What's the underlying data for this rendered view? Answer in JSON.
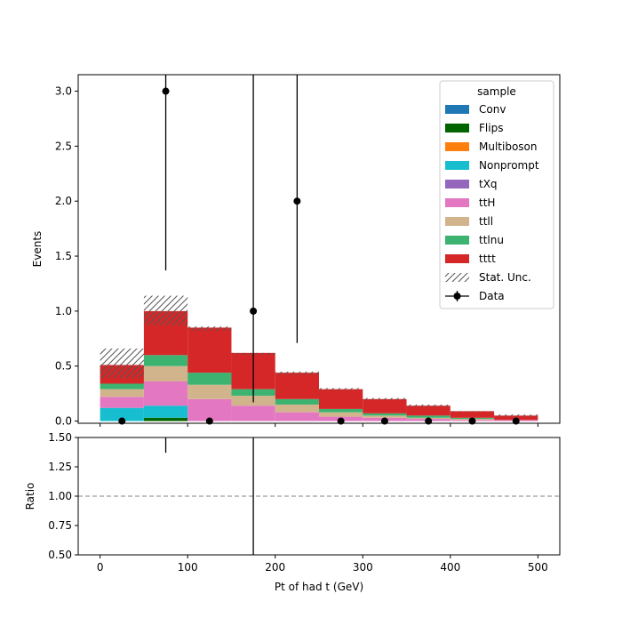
{
  "chart_data": [
    {
      "type": "bar",
      "stacked": true,
      "bin_edges": [
        0,
        50,
        100,
        150,
        200,
        250,
        300,
        350,
        400,
        450,
        500
      ],
      "ylabel": "Events",
      "ylim": [
        -0.02,
        3.15
      ],
      "xlim": [
        -25,
        525
      ],
      "yticks": [
        "0.0",
        "0.5",
        "1.0",
        "1.5",
        "2.0",
        "2.5",
        "3.0"
      ],
      "ytick_values": [
        0,
        0.5,
        1.0,
        1.5,
        2.0,
        2.5,
        3.0
      ],
      "legend_title": "sample",
      "legend_position": "top-right",
      "series": [
        {
          "name": "Conv",
          "color": "#1f77b4",
          "values": [
            0.0,
            0.0,
            0.0,
            0.0,
            0.0,
            0.0,
            0.0,
            0.0,
            0.0,
            0.0
          ]
        },
        {
          "name": "Flips",
          "color": "#006400",
          "values": [
            0.0,
            0.03,
            0.0,
            0.0,
            0.0,
            0.0,
            0.0,
            0.0,
            0.0,
            0.0
          ]
        },
        {
          "name": "Multiboson",
          "color": "#ff7f0e",
          "values": [
            0.0,
            0.0,
            0.0,
            0.0,
            0.0,
            0.0,
            0.0,
            0.0,
            0.0,
            0.0
          ]
        },
        {
          "name": "Nonprompt",
          "color": "#17becf",
          "values": [
            0.12,
            0.11,
            0.0,
            0.0,
            0.0,
            0.0,
            0.0,
            0.0,
            0.0,
            0.0
          ]
        },
        {
          "name": "tXq",
          "color": "#9467bd",
          "values": [
            0.0,
            0.0,
            0.0,
            0.0,
            0.0,
            0.0,
            0.0,
            0.0,
            0.0,
            0.0
          ]
        },
        {
          "name": "ttH",
          "color": "#e377c2",
          "values": [
            0.1,
            0.22,
            0.2,
            0.14,
            0.08,
            0.04,
            0.03,
            0.02,
            0.01,
            0.01
          ]
        },
        {
          "name": "ttll",
          "color": "#d2b48c",
          "values": [
            0.07,
            0.14,
            0.13,
            0.09,
            0.07,
            0.04,
            0.02,
            0.01,
            0.01,
            0.0
          ]
        },
        {
          "name": "ttlnu",
          "color": "#3cb371",
          "values": [
            0.05,
            0.1,
            0.11,
            0.06,
            0.05,
            0.03,
            0.02,
            0.02,
            0.01,
            0.0
          ]
        },
        {
          "name": "tttt",
          "color": "#d62728",
          "values": [
            0.17,
            0.4,
            0.41,
            0.33,
            0.24,
            0.18,
            0.13,
            0.09,
            0.06,
            0.04
          ]
        }
      ],
      "uncertainty": {
        "name": "Stat. Unc.",
        "down": [
          0.39,
          0.87,
          0.82,
          0.6,
          0.42,
          0.28,
          0.19,
          0.13,
          0.08,
          0.04
        ],
        "up": [
          0.66,
          1.14,
          0.86,
          0.62,
          0.45,
          0.3,
          0.21,
          0.15,
          0.09,
          0.06
        ]
      },
      "data": {
        "name": "Data",
        "x": [
          25,
          75,
          125,
          175,
          225,
          275,
          325,
          375,
          425,
          475
        ],
        "y": [
          0,
          3,
          0,
          1,
          2,
          0,
          0,
          0,
          0,
          0
        ],
        "yerr_low": [
          0,
          1.63,
          0,
          0.83,
          1.29,
          0,
          0,
          0,
          0,
          0
        ],
        "yerr_high": [
          0,
          2.92,
          0,
          2.3,
          2.64,
          0,
          0,
          0,
          0,
          0
        ]
      }
    },
    {
      "type": "line",
      "xlabel": "Pt of had t (GeV)",
      "ylabel": "Ratio",
      "ylim": [
        0.5,
        1.5
      ],
      "yticks": [
        "0.50",
        "0.75",
        "1.00",
        "1.25",
        "1.50"
      ],
      "ytick_values": [
        0.5,
        0.75,
        1.0,
        1.25,
        1.5
      ],
      "xticks": [
        "0",
        "100",
        "200",
        "300",
        "400",
        "500"
      ],
      "xtick_values": [
        0,
        100,
        200,
        300,
        400,
        500
      ],
      "reference_line": 1.0,
      "ratio_error_bars": [
        {
          "x": 75,
          "low": 1.37,
          "high": 1.5
        },
        {
          "x": 175,
          "low": 0.5,
          "high": 1.5
        }
      ]
    }
  ]
}
